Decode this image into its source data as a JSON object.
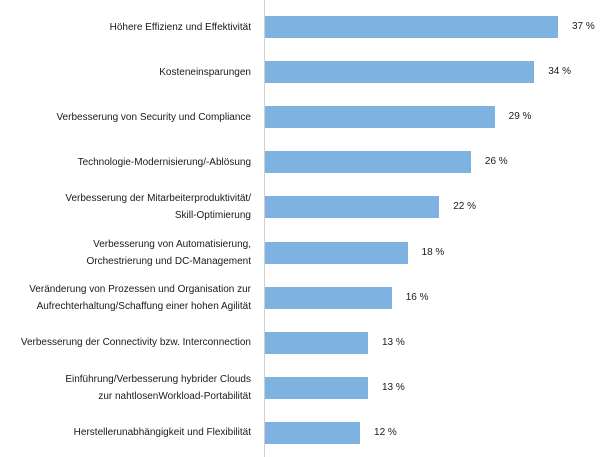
{
  "chart_data": {
    "type": "bar",
    "orientation": "horizontal",
    "title": "",
    "xlabel": "",
    "ylabel": "",
    "unit": "%",
    "xlim": [
      0,
      40
    ],
    "grid": false,
    "bar_color": "#7eb2e1",
    "categories": [
      "Höhere Effizienz und Effektivität",
      "Kosteneinsparungen",
      "Verbesserung von Security und Compliance",
      "Technologie-Modernisierung/-Ablösung",
      "Verbesserung der Mitarbeiterproduktivität/ Skill-Optimierung",
      "Verbesserung von Automatisierung, Orchestrierung und DC-Management",
      "Veränderung von Prozessen und Organisation zur Aufrechterhaltung/Schaffung einer hohen Agilität",
      "Verbesserung der Connectivity bzw. Interconnection",
      "Einführung/Verbesserung hybrider Clouds zur nahtlosenWorkload-Portabilität",
      "Herstellerunabhängigkeit und Flexibilität"
    ],
    "category_lines": [
      [
        "Höhere Effizienz und Effektivität"
      ],
      [
        "Kosteneinsparungen"
      ],
      [
        "Verbesserung von Security und Compliance"
      ],
      [
        "Technologie-Modernisierung/-Ablösung"
      ],
      [
        "Verbesserung der Mitarbeiterproduktivität/",
        "Skill-Optimierung"
      ],
      [
        "Verbesserung von Automatisierung,",
        "Orchestrierung und DC-Management"
      ],
      [
        "Veränderung von Prozessen und Organisation zur",
        "Aufrechterhaltung/Schaffung einer hohen Agilität"
      ],
      [
        "Verbesserung der Connectivity bzw. Interconnection"
      ],
      [
        "Einführung/Verbesserung hybrider Clouds",
        "zur nahtlosenWorkload-Portabilität"
      ],
      [
        "Herstellerunabhängigkeit und Flexibilität"
      ]
    ],
    "values": [
      37,
      34,
      29,
      26,
      22,
      18,
      16,
      13,
      13,
      12
    ],
    "value_labels": [
      "37 %",
      "34 %",
      "29 %",
      "26 %",
      "22 %",
      "18 %",
      "16 %",
      "13 %",
      "13 %",
      "12 %"
    ]
  }
}
